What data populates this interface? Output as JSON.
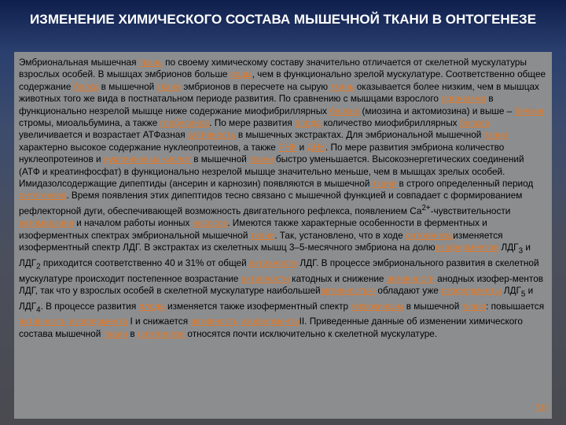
{
  "title": "ИЗМЕНЕНИЕ ХИМИЧЕСКОГО СОСТАВА МЫШЕЧНОЙ ТКАНИ В ОНТОГЕНЕЗЕ",
  "page_number": "30",
  "colors": {
    "link": "#e07a2a",
    "panel": "#8b8d8f",
    "title": "#ffffff"
  },
  "body": [
    {
      "t": "Эмбриональная мышечная "
    },
    {
      "t": "ткань",
      "link": true
    },
    {
      "t": " по своему химическому составу значительно отличается от скелетной мускулатуры взрослых особей. В мышцах эмбрионов больше "
    },
    {
      "t": "воды",
      "link": true
    },
    {
      "t": ", чем в функционально зрелой мускулатуре. Соответственно общее содержание "
    },
    {
      "t": "белка",
      "link": true
    },
    {
      "t": " в мышечной "
    },
    {
      "t": "ткани",
      "link": true
    },
    {
      "t": " эмбрионов в пересчете на сырую "
    },
    {
      "t": "ткань",
      "link": true
    },
    {
      "t": " оказывается более низким, чем в мышцах животных того же вида в постнатальном периоде развития. По сравнению с мышцами взрослого "
    },
    {
      "t": "организма",
      "link": true
    },
    {
      "t": " в функционально незрелой мышце ниже содержание миофибриллярных "
    },
    {
      "t": "белков",
      "link": true
    },
    {
      "t": " (миозина и актомиозина) и выше – "
    },
    {
      "t": "белков",
      "link": true
    },
    {
      "t": " стромы, миоальбумина, а также "
    },
    {
      "t": "глобулинов",
      "link": true
    },
    {
      "t": ". По мере развития "
    },
    {
      "t": "плода",
      "link": true
    },
    {
      "t": " количество миофибриллярных "
    },
    {
      "t": "белков",
      "link": true
    },
    {
      "t": " увеличивается и возрастает АТФазная "
    },
    {
      "t": "активность",
      "link": true
    },
    {
      "t": " в мышечных экстрактах. Для эмбриональной мышечной "
    },
    {
      "t": "ткани",
      "link": true
    },
    {
      "t": " характерно высокое содержание нуклеопротеинов, а также "
    },
    {
      "t": "РНК",
      "link": true
    },
    {
      "t": " и "
    },
    {
      "t": "ДНК",
      "link": true
    },
    {
      "t": ". По мере развития эмбриона количество нуклеопротеинов и "
    },
    {
      "t": "нуклеиновых кислот",
      "link": true
    },
    {
      "t": " в мышечной "
    },
    {
      "t": "ткани",
      "link": true
    },
    {
      "t": " быстро уменьшается. Высокоэнергетических соединений (АТФ и креатинфосфат) в функционально незрелой мышце значительно меньше, чем в мышцах зрелых особей. Имидазолсодержащие дипептиды (ансерин и карнозин) появляются в мышечной "
    },
    {
      "t": "ткани",
      "link": true
    },
    {
      "t": " в строго определенный период "
    },
    {
      "t": "онтогенеза",
      "link": true
    },
    {
      "t": ". Время появления этих дипептидов тесно связано с мышечной функцией и совпадает с формированием рефлекторной дуги, обеспечивающей возможность двигательного рефлекса, появлением Са"
    },
    {
      "t": "2+",
      "sup": true
    },
    {
      "t": "-чувствительности "
    },
    {
      "t": "актомиозина",
      "link": true
    },
    {
      "t": " и началом работы ионных "
    },
    {
      "t": "насосов",
      "link": true
    },
    {
      "t": ". Имеются также характерные особенности в ферментных и изоферментных спектрах эмбриональной мышечной "
    },
    {
      "t": "ткани",
      "link": true
    },
    {
      "t": ". Так, установлено, что в ходе "
    },
    {
      "t": "онтогенеза",
      "link": true
    },
    {
      "t": "изменяется изоферментный спектр ЛДГ. В экстрактах из скелетных мышц 3–5-месячного эмбриона на долю"
    },
    {
      "t": "изоферментов",
      "link": true
    },
    {
      "t": " ЛДГ"
    },
    {
      "t": "3",
      "sub": true
    },
    {
      "t": " и ЛДГ"
    },
    {
      "t": "2",
      "sub": true
    },
    {
      "t": " приходится соответственно 40 и 31% от общей "
    },
    {
      "t": "активности",
      "link": true
    },
    {
      "t": " ЛДГ. В процессе эмбрионального развития в скелетной мускулатуре происходит постепенное возрастание "
    },
    {
      "t": "активности",
      "link": true
    },
    {
      "t": " катодных и снижение "
    },
    {
      "t": "активности",
      "link": true
    },
    {
      "t": " анодных изофер-ментов ЛДГ, так что у взрослых особей в скелетной мускулатуре наибольшей"
    },
    {
      "t": "активностью",
      "link": true
    },
    {
      "t": " обладают уже "
    },
    {
      "t": "изоферменты",
      "link": true
    },
    {
      "t": " ЛДГ"
    },
    {
      "t": "5",
      "sub": true
    },
    {
      "t": " и ЛДГ"
    },
    {
      "t": "4",
      "sub": true
    },
    {
      "t": ". В процессе развития "
    },
    {
      "t": "плода",
      "link": true
    },
    {
      "t": " изменяется также изоферментный спектр "
    },
    {
      "t": "гексокиназы",
      "link": true
    },
    {
      "t": " в мышечной "
    },
    {
      "t": "ткани",
      "link": true
    },
    {
      "t": ": повышается "
    },
    {
      "t": "активность",
      "link": true
    },
    {
      "t": " "
    },
    {
      "t": "изофермента",
      "link": true
    },
    {
      "t": " I и снижается "
    },
    {
      "t": "активность",
      "link": true
    },
    {
      "t": " "
    },
    {
      "t": "изофермента",
      "link": true
    },
    {
      "t": "II. Приведенные данные об изменении химического состава мышечной "
    },
    {
      "t": "ткани",
      "link": true
    },
    {
      "t": " в "
    },
    {
      "t": "онтогенезе",
      "link": true
    },
    {
      "t": " относятся почти исключительно к скелетной мускулатуре."
    }
  ]
}
